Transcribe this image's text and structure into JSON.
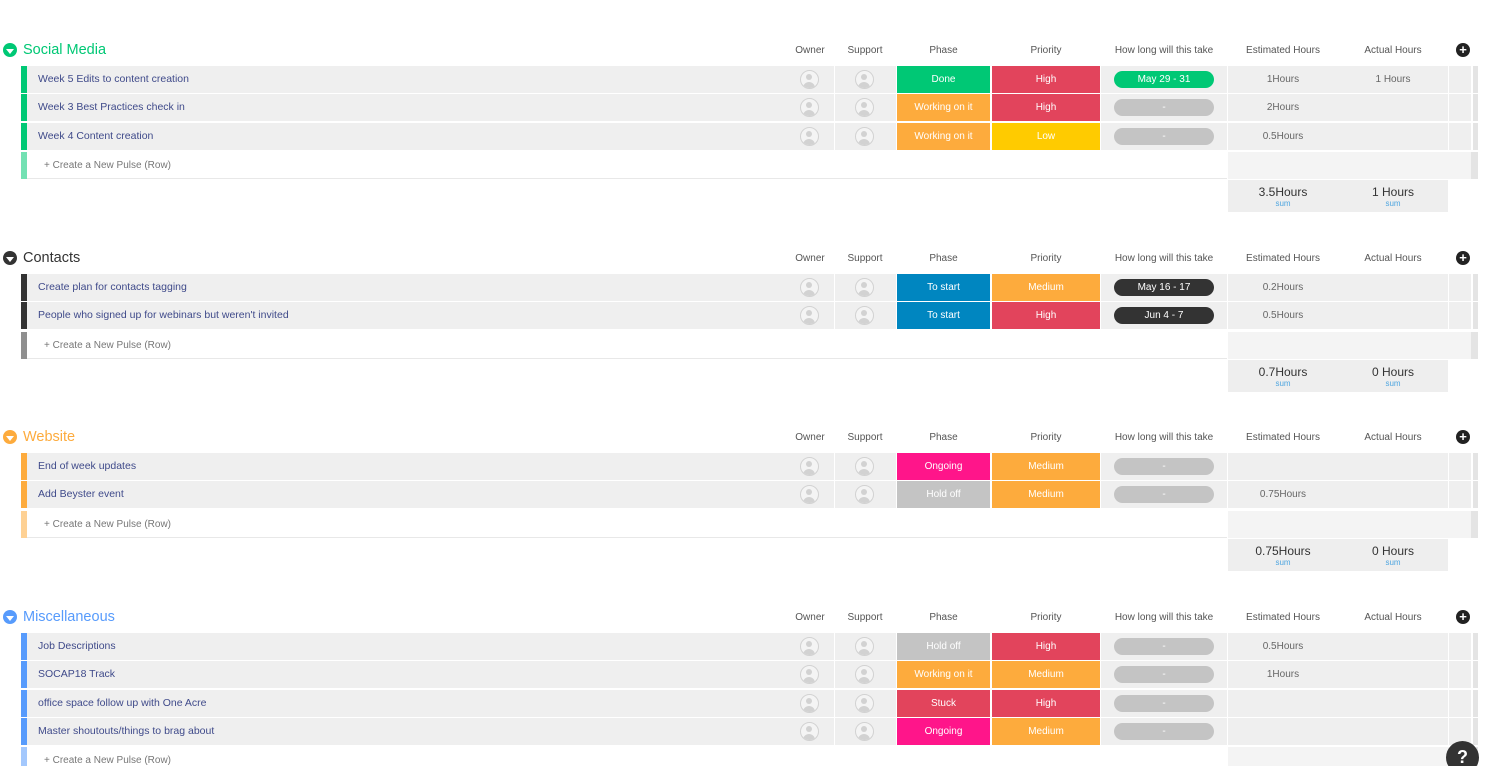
{
  "columns": {
    "owner": "Owner",
    "support": "Support",
    "phase": "Phase",
    "priority": "Priority",
    "timeline": "How long will this take",
    "estimated": "Estimated Hours",
    "actual": "Actual Hours"
  },
  "colors": {
    "done": "#00c875",
    "working": "#fdab3d",
    "stuck": "#e2445c",
    "ongoing": "#ff158a",
    "holdoff": "#c4c4c4",
    "tostart": "#0086c0",
    "high": "#e2445c",
    "medium": "#fdab3d",
    "low": "#ffcb00",
    "timeline_empty": "#c4c4c4",
    "timeline_dark": "#333333"
  },
  "add_row_label": "+ Create a New Pulse (Row)",
  "sum_label": "sum",
  "help_label": "?",
  "groups": [
    {
      "title": "Social Media",
      "color": "#00c875",
      "rows": [
        {
          "name": "Week 5 Edits to content creation",
          "phase": "Done",
          "phase_color": "#00c875",
          "priority": "High",
          "priority_color": "#e2445c",
          "timeline": "May 29 - 31",
          "timeline_color": "#00c875",
          "estimated": "1Hours",
          "actual": "1 Hours"
        },
        {
          "name": "Week 3 Best Practices check in",
          "phase": "Working on it",
          "phase_color": "#fdab3d",
          "priority": "High",
          "priority_color": "#e2445c",
          "timeline": "-",
          "timeline_color": "#c4c4c4",
          "estimated": "2Hours",
          "actual": ""
        },
        {
          "name": "Week 4 Content creation",
          "phase": "Working on it",
          "phase_color": "#fdab3d",
          "priority": "Low",
          "priority_color": "#ffcb00",
          "timeline": "-",
          "timeline_color": "#c4c4c4",
          "estimated": "0.5Hours",
          "actual": ""
        }
      ],
      "sum_estimated": "3.5Hours",
      "sum_actual": "1 Hours"
    },
    {
      "title": "Contacts",
      "color": "#333333",
      "rows": [
        {
          "name": "Create plan for contacts tagging",
          "phase": "To start",
          "phase_color": "#0086c0",
          "priority": "Medium",
          "priority_color": "#fdab3d",
          "timeline": "May 16 - 17",
          "timeline_color": "#333333",
          "estimated": "0.2Hours",
          "actual": ""
        },
        {
          "name": "People who signed up for webinars but weren't invited",
          "phase": "To start",
          "phase_color": "#0086c0",
          "priority": "High",
          "priority_color": "#e2445c",
          "timeline": "Jun 4 - 7",
          "timeline_color": "#333333",
          "estimated": "0.5Hours",
          "actual": ""
        }
      ],
      "sum_estimated": "0.7Hours",
      "sum_actual": "0 Hours"
    },
    {
      "title": "Website",
      "color": "#fdab3d",
      "rows": [
        {
          "name": "End of week updates",
          "phase": "Ongoing",
          "phase_color": "#ff158a",
          "priority": "Medium",
          "priority_color": "#fdab3d",
          "timeline": "-",
          "timeline_color": "#c4c4c4",
          "estimated": "",
          "actual": ""
        },
        {
          "name": "Add Beyster event",
          "phase": "Hold off",
          "phase_color": "#c4c4c4",
          "priority": "Medium",
          "priority_color": "#fdab3d",
          "timeline": "-",
          "timeline_color": "#c4c4c4",
          "estimated": "0.75Hours",
          "actual": ""
        }
      ],
      "sum_estimated": "0.75Hours",
      "sum_actual": "0 Hours"
    },
    {
      "title": "Miscellaneous",
      "color": "#579bfc",
      "rows": [
        {
          "name": "Job Descriptions",
          "phase": "Hold off",
          "phase_color": "#c4c4c4",
          "priority": "High",
          "priority_color": "#e2445c",
          "timeline": "-",
          "timeline_color": "#c4c4c4",
          "estimated": "0.5Hours",
          "actual": ""
        },
        {
          "name": "SOCAP18 Track",
          "phase": "Working on it",
          "phase_color": "#fdab3d",
          "priority": "Medium",
          "priority_color": "#fdab3d",
          "timeline": "-",
          "timeline_color": "#c4c4c4",
          "estimated": "1Hours",
          "actual": ""
        },
        {
          "name": "office space follow up with One Acre",
          "phase": "Stuck",
          "phase_color": "#e2445c",
          "priority": "High",
          "priority_color": "#e2445c",
          "timeline": "-",
          "timeline_color": "#c4c4c4",
          "estimated": "",
          "actual": ""
        },
        {
          "name": "Master shoutouts/things to brag about",
          "phase": "Ongoing",
          "phase_color": "#ff158a",
          "priority": "Medium",
          "priority_color": "#fdab3d",
          "timeline": "-",
          "timeline_color": "#c4c4c4",
          "estimated": "",
          "actual": ""
        }
      ],
      "sum_estimated": "",
      "sum_actual": ""
    }
  ]
}
